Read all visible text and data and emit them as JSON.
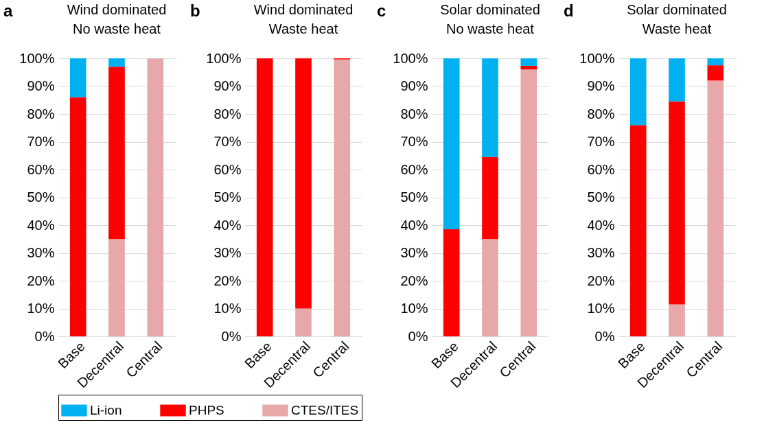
{
  "chart_data": [
    {
      "type": "bar",
      "title": "Wind dominated\nNo waste heat",
      "annotations": [
        "a"
      ],
      "categories": [
        "Base",
        "Decentral",
        "Central"
      ],
      "stacked": true,
      "ylim": [
        0,
        100
      ],
      "yticks": [
        {
          "value": 0,
          "label": "0%"
        },
        {
          "value": 10,
          "label": "10%"
        },
        {
          "value": 20,
          "label": "20%"
        },
        {
          "value": 30,
          "label": "30%"
        },
        {
          "value": 40,
          "label": "40%"
        },
        {
          "value": 50,
          "label": "50%"
        },
        {
          "value": 60,
          "label": "60%"
        },
        {
          "value": 70,
          "label": "70%"
        },
        {
          "value": 80,
          "label": "80%"
        },
        {
          "value": 90,
          "label": "90%"
        },
        {
          "value": 100,
          "label": "100%"
        }
      ],
      "grid": "y",
      "legend": "bottom",
      "series": [
        {
          "name": "CTES/ITES",
          "color": "#e6a8a8",
          "values": [
            0,
            35,
            100
          ]
        },
        {
          "name": "PHPS",
          "color": "#ff0000",
          "values": [
            86,
            62,
            0
          ]
        },
        {
          "name": "Li-ion",
          "color": "#00b0f0",
          "values": [
            14,
            3,
            0
          ]
        }
      ]
    },
    {
      "type": "bar",
      "title": "Wind dominated\nWaste heat",
      "annotations": [
        "b"
      ],
      "categories": [
        "Base",
        "Decentral",
        "Central"
      ],
      "stacked": true,
      "ylim": [
        0,
        100
      ],
      "yticks": [
        {
          "value": 0,
          "label": "0%"
        },
        {
          "value": 10,
          "label": "10%"
        },
        {
          "value": 20,
          "label": "20%"
        },
        {
          "value": 30,
          "label": "30%"
        },
        {
          "value": 40,
          "label": "40%"
        },
        {
          "value": 50,
          "label": "50%"
        },
        {
          "value": 60,
          "label": "60%"
        },
        {
          "value": 70,
          "label": "70%"
        },
        {
          "value": 80,
          "label": "80%"
        },
        {
          "value": 90,
          "label": "90%"
        },
        {
          "value": 100,
          "label": "100%"
        }
      ],
      "grid": "y",
      "legend": "bottom",
      "series": [
        {
          "name": "CTES/ITES",
          "color": "#e6a8a8",
          "values": [
            0,
            10,
            99.6
          ]
        },
        {
          "name": "PHPS",
          "color": "#ff0000",
          "values": [
            100,
            90,
            0.4
          ]
        },
        {
          "name": "Li-ion",
          "color": "#00b0f0",
          "values": [
            0,
            0,
            0
          ]
        }
      ]
    },
    {
      "type": "bar",
      "title": "Solar dominated\nNo waste heat",
      "annotations": [
        "c"
      ],
      "categories": [
        "Base",
        "Decentral",
        "Central"
      ],
      "stacked": true,
      "ylim": [
        0,
        100
      ],
      "yticks": [
        {
          "value": 0,
          "label": "0%"
        },
        {
          "value": 10,
          "label": "10%"
        },
        {
          "value": 20,
          "label": "20%"
        },
        {
          "value": 30,
          "label": "30%"
        },
        {
          "value": 40,
          "label": "40%"
        },
        {
          "value": 50,
          "label": "50%"
        },
        {
          "value": 60,
          "label": "60%"
        },
        {
          "value": 70,
          "label": "70%"
        },
        {
          "value": 80,
          "label": "80%"
        },
        {
          "value": 90,
          "label": "90%"
        },
        {
          "value": 100,
          "label": "100%"
        }
      ],
      "grid": "y",
      "legend": "bottom",
      "series": [
        {
          "name": "CTES/ITES",
          "color": "#e6a8a8",
          "values": [
            0,
            35,
            96
          ]
        },
        {
          "name": "PHPS",
          "color": "#ff0000",
          "values": [
            38.5,
            29.5,
            1.3
          ]
        },
        {
          "name": "Li-ion",
          "color": "#00b0f0",
          "values": [
            61.5,
            35.5,
            2.7
          ]
        }
      ]
    },
    {
      "type": "bar",
      "title": "Solar dominated\nWaste heat",
      "annotations": [
        "d"
      ],
      "categories": [
        "Base",
        "Decentral",
        "Central"
      ],
      "stacked": true,
      "ylim": [
        0,
        100
      ],
      "yticks": [
        {
          "value": 0,
          "label": "0%"
        },
        {
          "value": 10,
          "label": "10%"
        },
        {
          "value": 20,
          "label": "20%"
        },
        {
          "value": 30,
          "label": "30%"
        },
        {
          "value": 40,
          "label": "40%"
        },
        {
          "value": 50,
          "label": "50%"
        },
        {
          "value": 60,
          "label": "60%"
        },
        {
          "value": 70,
          "label": "70%"
        },
        {
          "value": 80,
          "label": "80%"
        },
        {
          "value": 90,
          "label": "90%"
        },
        {
          "value": 100,
          "label": "100%"
        }
      ],
      "grid": "y",
      "legend": "bottom",
      "series": [
        {
          "name": "CTES/ITES",
          "color": "#e6a8a8",
          "values": [
            0,
            11.5,
            92
          ]
        },
        {
          "name": "PHPS",
          "color": "#ff0000",
          "values": [
            76,
            73,
            5.5
          ]
        },
        {
          "name": "Li-ion",
          "color": "#00b0f0",
          "values": [
            24,
            15.5,
            2.5
          ]
        }
      ]
    }
  ]
}
